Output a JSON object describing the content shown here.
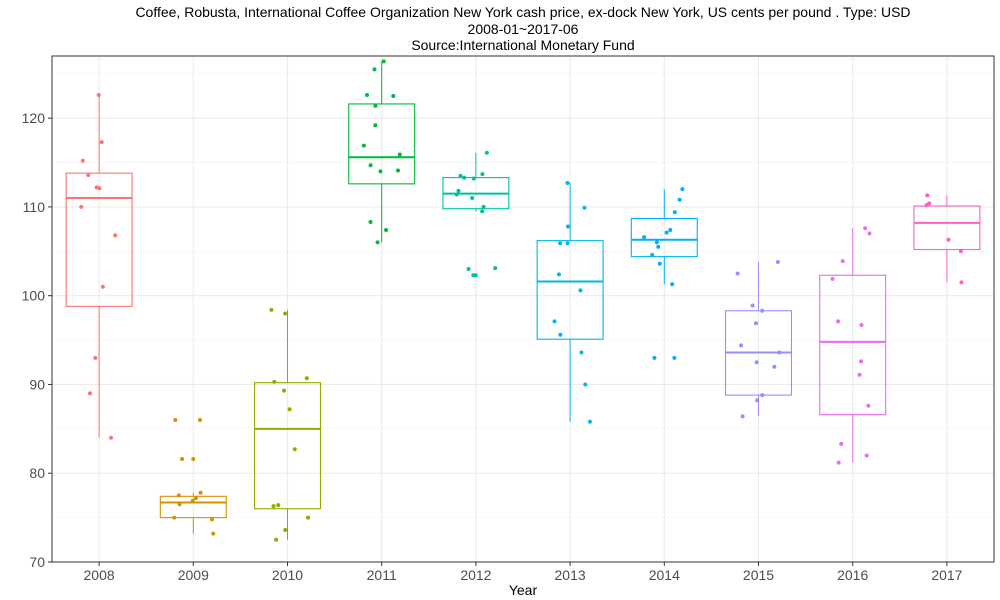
{
  "chart_data": {
    "type": "boxplot",
    "title": "Coffee, Robusta, International Coffee Organization New York cash price, ex-dock New York, US cents per pound . Type: USD",
    "subtitle": "2008-01~2017-06",
    "source": "Source:International Monetary Fund",
    "xlabel": "Year",
    "ylabel": "",
    "ylim": [
      70,
      127
    ],
    "yticks": [
      70,
      80,
      90,
      100,
      110,
      120
    ],
    "grid": true,
    "legend": "none",
    "categories": [
      "2008",
      "2009",
      "2010",
      "2011",
      "2012",
      "2013",
      "2014",
      "2015",
      "2016",
      "2017"
    ],
    "colors": [
      "#F8766D",
      "#D39200",
      "#93AA00",
      "#00BA38",
      "#00C19F",
      "#00B9E3",
      "#00B2F3",
      "#9590FF",
      "#E76BF3",
      "#FF61C3"
    ],
    "boxes": [
      {
        "year": "2008",
        "min": 84.0,
        "q1": 98.8,
        "median": 111.0,
        "q3": 113.8,
        "max": 122.6
      },
      {
        "year": "2009",
        "min": 73.2,
        "q1": 75.0,
        "median": 76.7,
        "q3": 77.4,
        "max": 77.8
      },
      {
        "year": "2010",
        "min": 72.5,
        "q1": 76.0,
        "median": 85.0,
        "q3": 90.2,
        "max": 98.4
      },
      {
        "year": "2011",
        "min": 106.0,
        "q1": 112.6,
        "median": 115.6,
        "q3": 121.6,
        "max": 126.4
      },
      {
        "year": "2012",
        "min": 109.5,
        "q1": 109.8,
        "median": 111.5,
        "q3": 113.3,
        "max": 116.1
      },
      {
        "year": "2013",
        "min": 85.8,
        "q1": 95.1,
        "median": 101.6,
        "q3": 106.2,
        "max": 112.7
      },
      {
        "year": "2014",
        "min": 101.3,
        "q1": 104.4,
        "median": 106.3,
        "q3": 108.7,
        "max": 112.0
      },
      {
        "year": "2015",
        "min": 86.4,
        "q1": 88.8,
        "median": 93.6,
        "q3": 98.3,
        "max": 103.8
      },
      {
        "year": "2016",
        "min": 81.2,
        "q1": 86.6,
        "median": 94.8,
        "q3": 102.3,
        "max": 107.6
      },
      {
        "year": "2017",
        "min": 101.5,
        "q1": 105.2,
        "median": 108.2,
        "q3": 110.1,
        "max": 111.3
      }
    ],
    "points": [
      {
        "year": "2008",
        "values": [
          122.6,
          117.3,
          115.2,
          113.6,
          112.2,
          112.1,
          110.0,
          106.8,
          101.0,
          93.0,
          89.0,
          84.0
        ]
      },
      {
        "year": "2009",
        "values": [
          86.0,
          86.0,
          81.6,
          81.6,
          77.8,
          77.5,
          77.2,
          76.9,
          76.5,
          75.0,
          74.8,
          73.2
        ]
      },
      {
        "year": "2010",
        "values": [
          98.4,
          98.0,
          90.7,
          90.3,
          89.3,
          87.2,
          82.7,
          76.4,
          76.3,
          75.0,
          73.6,
          72.5
        ]
      },
      {
        "year": "2011",
        "values": [
          126.4,
          125.5,
          122.6,
          122.5,
          121.4,
          119.2,
          116.9,
          115.9,
          114.7,
          114.1,
          114.0,
          108.3,
          107.4,
          106.0
        ]
      },
      {
        "year": "2012",
        "values": [
          116.1,
          113.7,
          113.5,
          113.3,
          113.2,
          111.8,
          111.4,
          111.0,
          110.0,
          109.5,
          103.1,
          103.0,
          102.3,
          102.3
        ]
      },
      {
        "year": "2013",
        "values": [
          112.7,
          109.9,
          107.8,
          105.9,
          105.9,
          102.4,
          100.6,
          97.1,
          95.6,
          93.6,
          90.0,
          85.8
        ]
      },
      {
        "year": "2014",
        "values": [
          112.0,
          110.8,
          109.4,
          107.4,
          107.1,
          106.6,
          106.0,
          105.5,
          104.6,
          103.6,
          101.3,
          93.0,
          93.0
        ]
      },
      {
        "year": "2015",
        "values": [
          103.8,
          102.5,
          98.9,
          98.3,
          96.9,
          94.4,
          93.6,
          92.5,
          92.0,
          88.8,
          88.2,
          86.4
        ]
      },
      {
        "year": "2016",
        "values": [
          107.6,
          107.0,
          103.9,
          101.9,
          97.1,
          96.7,
          92.6,
          91.1,
          87.6,
          83.3,
          82.0,
          81.2
        ]
      },
      {
        "year": "2017",
        "values": [
          111.3,
          110.4,
          110.2,
          106.3,
          105.0,
          101.5
        ]
      }
    ]
  }
}
